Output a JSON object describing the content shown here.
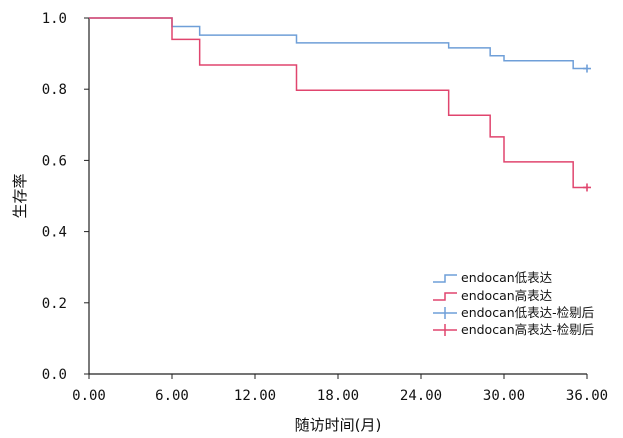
{
  "chart_data": {
    "type": "line",
    "xlabel": "随访时间(月)",
    "ylabel": "生存率",
    "xlim": [
      0,
      36
    ],
    "ylim": [
      0,
      1.0
    ],
    "x_ticks": [
      "0.00",
      "6.00",
      "12.00",
      "18.00",
      "24.00",
      "30.00",
      "36.00"
    ],
    "x_tick_values": [
      0,
      6,
      12,
      18,
      24,
      30,
      36
    ],
    "y_ticks": [
      "0.0",
      "0.2",
      "0.4",
      "0.6",
      "0.8",
      "1.0"
    ],
    "y_tick_values": [
      0,
      0.2,
      0.4,
      0.6,
      0.8,
      1.0
    ],
    "grid": false,
    "legend_position": "bottom-right",
    "series": [
      {
        "name": "endocan低表达",
        "color": "#6f9fd8",
        "steps": [
          [
            0,
            1.0
          ],
          [
            6,
            0.976
          ],
          [
            8,
            0.952
          ],
          [
            15,
            0.93
          ],
          [
            26,
            0.916
          ],
          [
            29,
            0.894
          ],
          [
            30,
            0.88
          ],
          [
            35,
            0.858
          ],
          [
            36,
            0.858
          ]
        ]
      },
      {
        "name": "endocan高表达",
        "color": "#e0456e",
        "steps": [
          [
            0,
            1.0
          ],
          [
            6,
            0.94
          ],
          [
            8,
            0.868
          ],
          [
            15,
            0.797
          ],
          [
            26,
            0.727
          ],
          [
            29,
            0.666
          ],
          [
            30,
            0.596
          ],
          [
            35,
            0.524
          ],
          [
            36,
            0.524
          ]
        ]
      }
    ],
    "censored": [
      {
        "name": "endocan低表达-检剔后",
        "color": "#6f9fd8",
        "points": [
          [
            36,
            0.858
          ]
        ]
      },
      {
        "name": "endocan高表达-检剔后",
        "color": "#e0456e",
        "points": [
          [
            36,
            0.524
          ]
        ]
      }
    ]
  }
}
